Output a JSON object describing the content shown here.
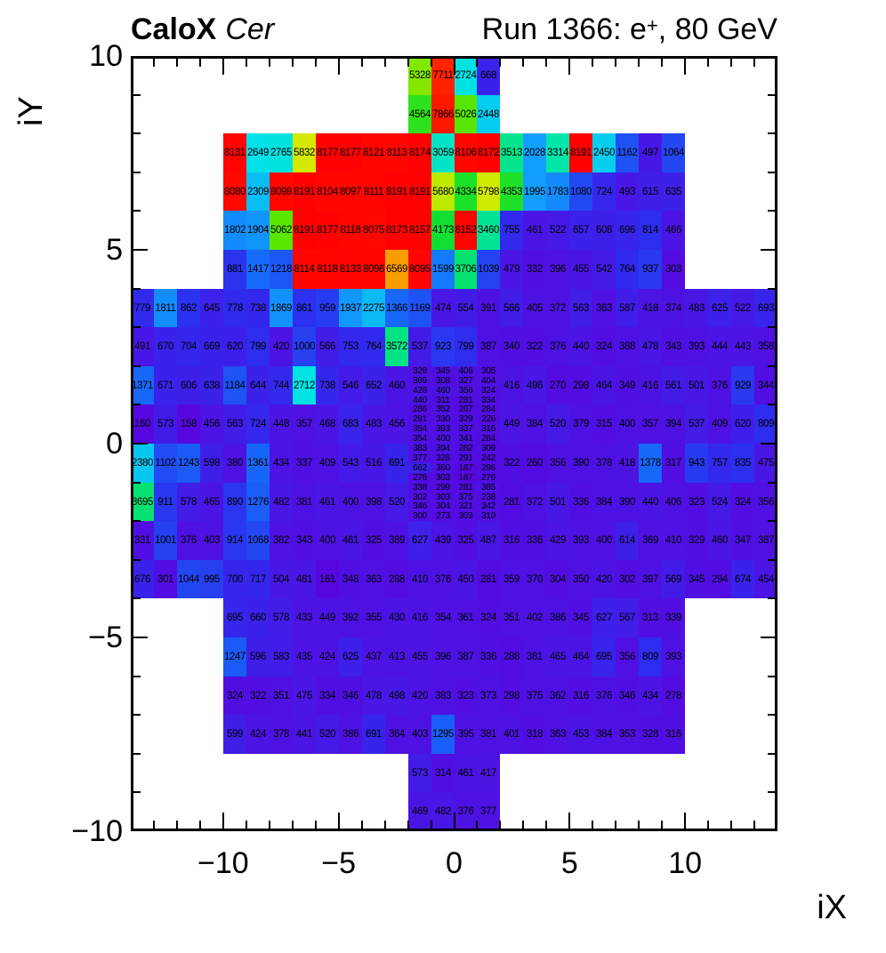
{
  "chart_data": {
    "type": "heatmap",
    "title_left_bold": "CaloX",
    "title_left_italic": "Cer",
    "title_right_pre": "Run 1366: e",
    "title_right_sup": "+",
    "title_right_post": ", 80 GeV",
    "xlabel": "iX",
    "ylabel": "iY",
    "xlim": [
      -14,
      14
    ],
    "ylim": [
      -10,
      10
    ],
    "grid": "off",
    "vmax": 8191,
    "x_major_ticks": [
      -10,
      -5,
      0,
      5,
      10
    ],
    "x_tick_labels": [
      "−10",
      "−5",
      "0",
      "5",
      "10"
    ],
    "y_major_ticks": [
      10,
      5,
      0,
      -5,
      -10
    ],
    "y_tick_labels": [
      "10",
      "5",
      "0",
      "−5",
      "−10"
    ],
    "palette_stops": [
      [
        0.0,
        [
          92,
          0,
          221
        ]
      ],
      [
        0.055,
        [
          75,
          20,
          228
        ]
      ],
      [
        0.1,
        [
          45,
          45,
          238
        ]
      ],
      [
        0.175,
        [
          20,
          110,
          250
        ]
      ],
      [
        0.25,
        [
          18,
          160,
          252
        ]
      ],
      [
        0.32,
        [
          0,
          225,
          235
        ]
      ],
      [
        0.4,
        [
          0,
          230,
          175
        ]
      ],
      [
        0.5,
        [
          10,
          222,
          55
        ]
      ],
      [
        0.62,
        [
          90,
          230,
          0
        ]
      ],
      [
        0.68,
        [
          170,
          232,
          0
        ]
      ],
      [
        0.73,
        [
          235,
          235,
          0
        ]
      ],
      [
        0.8,
        [
          250,
          160,
          0
        ]
      ],
      [
        0.9,
        [
          255,
          60,
          0
        ]
      ],
      [
        1.0,
        [
          255,
          0,
          0
        ]
      ]
    ],
    "rows": [
      {
        "iy_top": 10,
        "ix_left": -2,
        "values": [
          5328,
          7711,
          2724,
          668
        ]
      },
      {
        "iy_top": 9,
        "ix_left": -2,
        "values": [
          4564,
          7866,
          5026,
          2448
        ]
      },
      {
        "iy_top": 8,
        "ix_left": -10,
        "values": [
          8131,
          2649,
          2765,
          5832,
          8177,
          8177,
          8121,
          8113,
          8174,
          3059,
          8106,
          8172,
          3513,
          2028,
          3314,
          8191,
          2450,
          1162,
          497,
          1064
        ]
      },
      {
        "iy_top": 7,
        "ix_left": -10,
        "values": [
          8080,
          2309,
          8098,
          8191,
          8104,
          8097,
          8111,
          8191,
          8191,
          5680,
          4334,
          5798,
          4353,
          1995,
          1783,
          1080,
          724,
          493,
          615,
          635
        ]
      },
      {
        "iy_top": 6,
        "ix_left": -10,
        "values": [
          1802,
          1904,
          5062,
          8191,
          8177,
          8118,
          8075,
          8173,
          8157,
          4173,
          8152,
          3460,
          755,
          461,
          522,
          657,
          608,
          696,
          814,
          466
        ]
      },
      {
        "iy_top": 5,
        "ix_left": -10,
        "values": [
          881,
          1417,
          1218,
          8114,
          8118,
          8133,
          8096,
          6569,
          8095,
          1599,
          3706,
          1039,
          479,
          332,
          396,
          455,
          542,
          764,
          937,
          303
        ]
      },
      {
        "iy_top": 4,
        "ix_left": -14,
        "values": [
          779,
          1811,
          862,
          645,
          778,
          738,
          1869,
          861,
          959,
          1937,
          2275,
          1366,
          1169,
          474,
          554,
          391,
          566,
          405,
          372,
          563,
          363,
          587,
          418,
          374,
          483,
          625,
          522,
          693
        ]
      },
      {
        "iy_top": 3,
        "ix_left": -14,
        "values": [
          491,
          670,
          704,
          669,
          620,
          799,
          420,
          1000,
          566,
          753,
          764,
          3572,
          537,
          923,
          799,
          387,
          340,
          322,
          376,
          440,
          324,
          388,
          478,
          343,
          393,
          444,
          443,
          358
        ]
      },
      {
        "iy_top": 2,
        "ix_left": -14,
        "values": [
          1371,
          671,
          606,
          638,
          1184,
          644,
          744,
          2712,
          738,
          546,
          652,
          460
        ]
      },
      {
        "iy_top": 2,
        "ix_left": 2,
        "values": [
          416,
          496,
          270,
          298,
          464,
          349,
          416,
          561,
          501,
          376,
          929,
          344
        ]
      },
      {
        "iy_top": 1,
        "ix_left": -14,
        "values": [
          160,
          573,
          158,
          456,
          563,
          724,
          448,
          357,
          468,
          683,
          483,
          456
        ]
      },
      {
        "iy_top": 1,
        "ix_left": 2,
        "values": [
          449,
          384,
          520,
          379,
          315,
          400,
          357,
          394,
          537,
          409,
          620,
          809
        ]
      },
      {
        "iy_top": 0,
        "ix_left": -14,
        "values": [
          2380,
          1102,
          1243,
          598,
          380,
          1361,
          434,
          337,
          409,
          543,
          516,
          691
        ]
      },
      {
        "iy_top": 0,
        "ix_left": 2,
        "values": [
          322,
          260,
          356,
          390,
          378,
          418,
          1378,
          317,
          943,
          757,
          835,
          475
        ]
      },
      {
        "iy_top": -1,
        "ix_left": -14,
        "values": [
          3695,
          911,
          578,
          465,
          890,
          1276,
          482,
          381,
          461,
          400,
          398,
          520
        ]
      },
      {
        "iy_top": -1,
        "ix_left": 2,
        "values": [
          281,
          372,
          501,
          336,
          384,
          390,
          440,
          406,
          323,
          524,
          324,
          356
        ]
      },
      {
        "iy_top": -2,
        "ix_left": -14,
        "values": [
          331,
          1001,
          376,
          403,
          914,
          1068,
          382,
          343,
          400,
          461,
          325,
          389,
          627,
          439,
          325,
          487,
          316,
          336,
          429,
          393,
          400,
          614,
          369,
          410,
          329,
          460,
          347,
          387
        ]
      },
      {
        "iy_top": -3,
        "ix_left": -14,
        "values": [
          676,
          301,
          1044,
          995,
          700,
          717,
          504,
          481,
          161,
          348,
          363,
          288,
          410,
          376,
          450,
          281,
          359,
          370,
          304,
          350,
          420,
          302,
          397,
          569,
          345,
          294,
          674,
          454
        ]
      },
      {
        "iy_top": -4,
        "ix_left": -10,
        "values": [
          695,
          660,
          578,
          433,
          449,
          392,
          355,
          430,
          416,
          354,
          361,
          324,
          351,
          402,
          386,
          345,
          627,
          567,
          313,
          339
        ]
      },
      {
        "iy_top": -5,
        "ix_left": -10,
        "values": [
          1247,
          596,
          583,
          435,
          424,
          625,
          437,
          413,
          455,
          396,
          387,
          336,
          288,
          381,
          465,
          464,
          695,
          356,
          809,
          393
        ]
      },
      {
        "iy_top": -6,
        "ix_left": -10,
        "values": [
          324,
          322,
          351,
          475,
          334,
          346,
          478,
          498,
          420,
          383,
          323,
          373,
          298,
          375,
          362,
          316,
          376,
          346,
          434,
          278
        ]
      },
      {
        "iy_top": -7,
        "ix_left": -10,
        "values": [
          599,
          424,
          378,
          441,
          520,
          386,
          691,
          364,
          403,
          1295,
          395,
          381,
          401,
          318,
          363,
          453,
          384,
          353,
          328,
          316
        ]
      },
      {
        "iy_top": -8,
        "ix_left": -2,
        "values": [
          573,
          314,
          461,
          417
        ]
      },
      {
        "iy_top": -9,
        "ix_left": -2,
        "values": [
          469,
          482,
          376,
          377
        ]
      }
    ],
    "fine_region": {
      "ix_left": -2,
      "iy_top": 2,
      "cols": 4,
      "rows": 16,
      "cell_w_units": 1,
      "cell_h_units": 0.25,
      "values": [
        [
          328,
          345,
          406,
          305
        ],
        [
          369,
          308,
          327,
          404
        ],
        [
          428,
          460,
          356,
          324
        ],
        [
          440,
          311,
          281,
          334
        ],
        [
          286,
          352,
          267,
          284
        ],
        [
          291,
          330,
          329,
          226
        ],
        [
          354,
          393,
          337,
          316
        ],
        [
          354,
          400,
          341,
          284
        ],
        [
          383,
          394,
          282,
          309
        ],
        [
          377,
          328,
          291,
          242
        ],
        [
          662,
          360,
          167,
          296
        ],
        [
          278,
          303,
          167,
          276
        ],
        [
          338,
          299,
          281,
          385
        ],
        [
          302,
          303,
          375,
          238
        ],
        [
          346,
          304,
          321,
          342
        ],
        [
          300,
          273,
          303,
          310
        ]
      ]
    }
  }
}
